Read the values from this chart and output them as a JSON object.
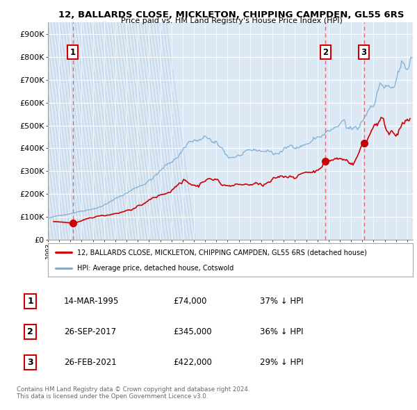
{
  "title": "12, BALLARDS CLOSE, MICKLETON, CHIPPING CAMPDEN, GL55 6RS",
  "subtitle": "Price paid vs. HM Land Registry's House Price Index (HPI)",
  "bg_color": "#dde8f5",
  "ylim": [
    0,
    950000
  ],
  "yticks": [
    0,
    100000,
    200000,
    300000,
    400000,
    500000,
    600000,
    700000,
    800000,
    900000
  ],
  "xmin": 1993.0,
  "xmax": 2025.5,
  "sale_color": "#cc0000",
  "hpi_color": "#7aaed6",
  "sale_years": [
    1995.21,
    2017.73,
    2021.15
  ],
  "sale_prices": [
    74000,
    345000,
    422000
  ],
  "sale_labels": [
    "1",
    "2",
    "3"
  ],
  "legend_house_label": "12, BALLARDS CLOSE, MICKLETON, CHIPPING CAMPDEN, GL55 6RS (detached house)",
  "legend_hpi_label": "HPI: Average price, detached house, Cotswold",
  "footer_line1": "Contains HM Land Registry data © Crown copyright and database right 2024.",
  "footer_line2": "This data is licensed under the Open Government Licence v3.0.",
  "table_rows": [
    {
      "num": "1",
      "date": "14-MAR-1995",
      "price": "£74,000",
      "change": "37% ↓ HPI"
    },
    {
      "num": "2",
      "date": "26-SEP-2017",
      "price": "£345,000",
      "change": "36% ↓ HPI"
    },
    {
      "num": "3",
      "date": "26-FEB-2021",
      "price": "£422,000",
      "change": "29% ↓ HPI"
    }
  ]
}
